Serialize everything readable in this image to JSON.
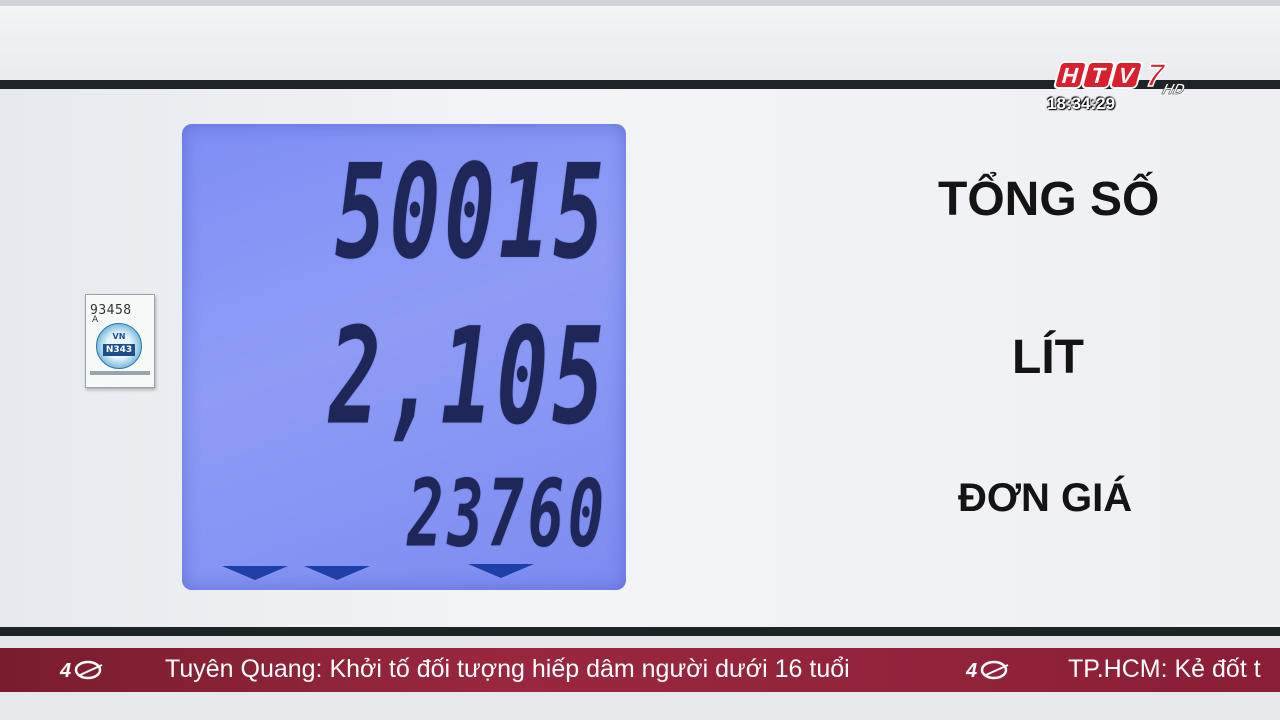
{
  "pump": {
    "display": {
      "total_amount": "50015",
      "liters": "2,105",
      "unit_price": "23760"
    },
    "labels": {
      "total": "TỔNG SỐ",
      "liters": "LÍT",
      "unit_price": "ĐƠN GIÁ"
    },
    "seal": {
      "number": "93458",
      "letter": "A",
      "country": "VN",
      "code": "N343"
    }
  },
  "broadcast": {
    "channel_logo": "HTV7 HD",
    "clock": "18:34:29",
    "ticker_items": [
      "Tuyên Quang: Khởi tố đối tượng hiếp dâm người dưới 16 tuổi",
      "TP.HCM: Kẻ đốt t"
    ]
  },
  "colors": {
    "lcd_background": "#8493f5",
    "lcd_digits": "#1f2758",
    "ticker_background": "#8f2039",
    "logo_red": "#d8202f"
  }
}
